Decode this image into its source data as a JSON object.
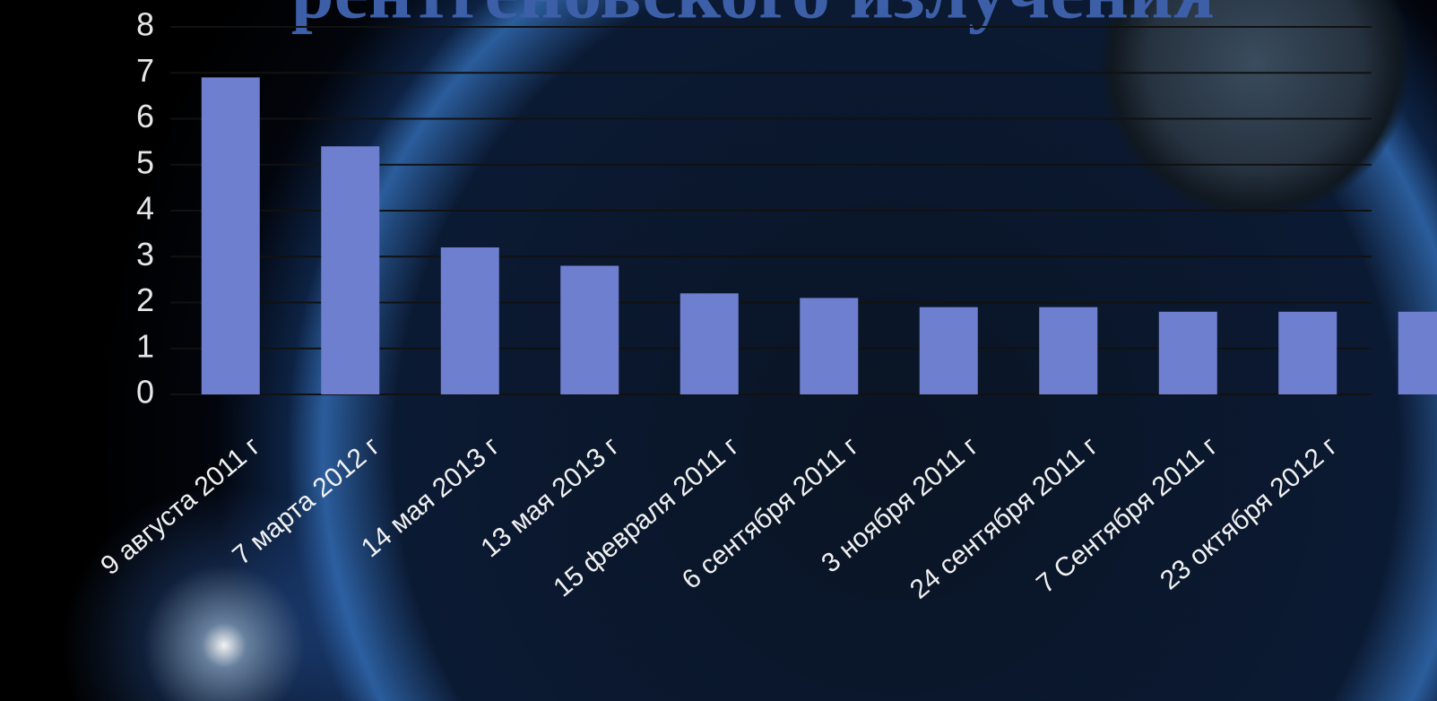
{
  "chart_data": {
    "type": "bar",
    "title": "рентгеновского излучения",
    "categories": [
      "9 августа 2011 г",
      "7 марта 2012 г",
      "14 мая 2013 г",
      "13 мая 2013 г",
      "15 февраля 2011 г",
      "6 сентября 2011 г",
      "3 ноября 2011 г",
      "24 сентября 2011 г",
      "7 Сентября 2011 г",
      "23 октября 2012 г",
      null
    ],
    "values": [
      6.9,
      5.4,
      3.2,
      2.8,
      2.2,
      2.1,
      1.9,
      1.9,
      1.8,
      1.8,
      1.8
    ],
    "color": "#6f7fd0",
    "ylim": [
      0,
      8
    ],
    "yticks": [
      0,
      1,
      2,
      3,
      4,
      5,
      6,
      7,
      8
    ],
    "grid": true
  }
}
